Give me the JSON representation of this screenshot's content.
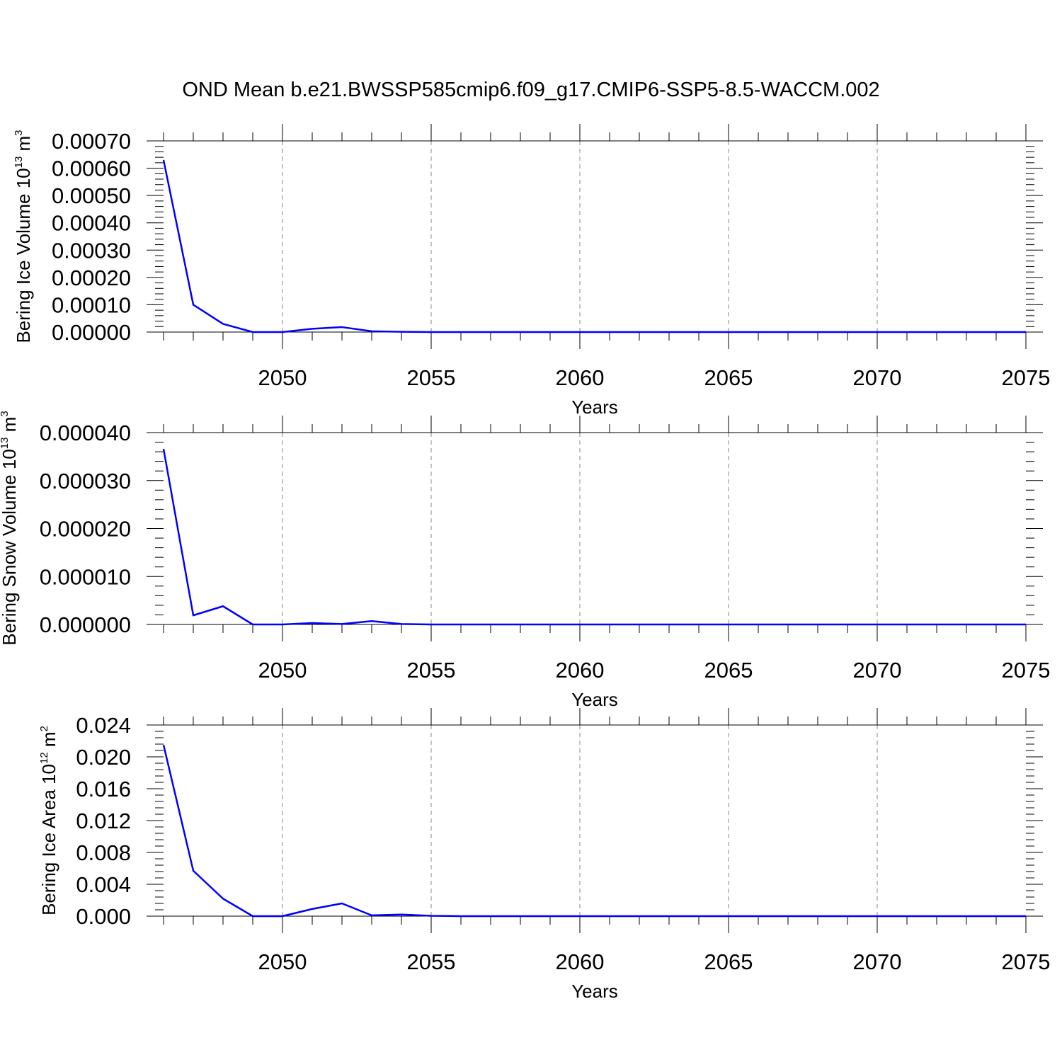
{
  "figure_title": "OND Mean b.e21.BWSSP585cmip6.f09_g17.CMIP6-SSP5-8.5-WACCM.002",
  "colors": {
    "line": "#0000ff",
    "axis": "#000000",
    "grid": "#888888",
    "background": "#ffffff"
  },
  "chart_data": [
    {
      "type": "line",
      "title": "",
      "xlabel": "Years",
      "ylabel": {
        "text": "Bering Ice Volume 10",
        "exponent": "13",
        "unit_text": " m",
        "unit_exponent": "3"
      },
      "xlim": [
        2046,
        2075
      ],
      "ylim": [
        0,
        0.0007
      ],
      "x_ticks": [
        2050,
        2055,
        2060,
        2065,
        2070,
        2075
      ],
      "x_tick_labels": [
        "2050",
        "2055",
        "2060",
        "2065",
        "2070",
        "2075"
      ],
      "y_ticks": [
        0,
        0.0001,
        0.0002,
        0.0003,
        0.0004,
        0.0005,
        0.0006,
        0.0007
      ],
      "y_tick_labels": [
        "0.00000",
        "0.00010",
        "0.00020",
        "0.00030",
        "0.00040",
        "0.00050",
        "0.00060",
        "0.00070"
      ],
      "grid": "vertical dashed at major x ticks",
      "series": [
        {
          "x": [
            2046,
            2047,
            2048,
            2049,
            2050,
            2051,
            2052,
            2053,
            2054,
            2055,
            2056,
            2057,
            2058,
            2059,
            2060,
            2061,
            2062,
            2063,
            2064,
            2065,
            2066,
            2067,
            2068,
            2069,
            2070,
            2071,
            2072,
            2073,
            2074,
            2075
          ],
          "values": [
            0.00063,
            0.0001,
            3e-05,
            0,
            0,
            1.2e-05,
            1.8e-05,
            3e-06,
            1e-06,
            0,
            0,
            0,
            0,
            0,
            0,
            0,
            0,
            0,
            0,
            0,
            0,
            0,
            0,
            0,
            0,
            0,
            0,
            0,
            0,
            0
          ]
        }
      ]
    },
    {
      "type": "line",
      "title": "",
      "xlabel": "Years",
      "ylabel": {
        "text": "Bering Snow Volume 10",
        "exponent": "13",
        "unit_text": " m",
        "unit_exponent": "3"
      },
      "xlim": [
        2046,
        2075
      ],
      "ylim": [
        0,
        4e-05
      ],
      "x_ticks": [
        2050,
        2055,
        2060,
        2065,
        2070,
        2075
      ],
      "x_tick_labels": [
        "2050",
        "2055",
        "2060",
        "2065",
        "2070",
        "2075"
      ],
      "y_ticks": [
        0,
        1e-05,
        2e-05,
        3e-05,
        4e-05
      ],
      "y_tick_labels": [
        "0.000000",
        "0.000010",
        "0.000020",
        "0.000030",
        "0.000040"
      ],
      "grid": "vertical dashed at major x ticks",
      "series": [
        {
          "x": [
            2046,
            2047,
            2048,
            2049,
            2050,
            2051,
            2052,
            2053,
            2054,
            2055,
            2056,
            2057,
            2058,
            2059,
            2060,
            2061,
            2062,
            2063,
            2064,
            2065,
            2066,
            2067,
            2068,
            2069,
            2070,
            2071,
            2072,
            2073,
            2074,
            2075
          ],
          "values": [
            3.66e-05,
            1.9e-06,
            3.8e-06,
            0,
            0,
            3e-07,
            1e-07,
            7e-07,
            1e-07,
            0,
            0,
            0,
            0,
            0,
            0,
            0,
            0,
            0,
            0,
            0,
            0,
            0,
            0,
            0,
            0,
            0,
            0,
            0,
            0,
            0
          ]
        }
      ]
    },
    {
      "type": "line",
      "title": "",
      "xlabel": "Years",
      "ylabel": {
        "text": "Bering Ice Area 10",
        "exponent": "12",
        "unit_text": " m",
        "unit_exponent": "2"
      },
      "xlim": [
        2046,
        2075
      ],
      "ylim": [
        0,
        0.024
      ],
      "x_ticks": [
        2050,
        2055,
        2060,
        2065,
        2070,
        2075
      ],
      "x_tick_labels": [
        "2050",
        "2055",
        "2060",
        "2065",
        "2070",
        "2075"
      ],
      "y_ticks": [
        0,
        0.004,
        0.008,
        0.012,
        0.016,
        0.02,
        0.024
      ],
      "y_tick_labels": [
        "0.000",
        "0.004",
        "0.008",
        "0.012",
        "0.016",
        "0.020",
        "0.024"
      ],
      "grid": "vertical dashed at major x ticks",
      "series": [
        {
          "x": [
            2046,
            2047,
            2048,
            2049,
            2050,
            2051,
            2052,
            2053,
            2054,
            2055,
            2056,
            2057,
            2058,
            2059,
            2060,
            2061,
            2062,
            2063,
            2064,
            2065,
            2066,
            2067,
            2068,
            2069,
            2070,
            2071,
            2072,
            2073,
            2074,
            2075
          ],
          "values": [
            0.0215,
            0.0057,
            0.0022,
            0,
            0,
            0.0009,
            0.0016,
            0.0001,
            0.0002,
            5e-05,
            0,
            0,
            0,
            0,
            0,
            0,
            0,
            0,
            0,
            0,
            0,
            0,
            0,
            0,
            0,
            0,
            0,
            0,
            0,
            0
          ]
        }
      ]
    }
  ]
}
